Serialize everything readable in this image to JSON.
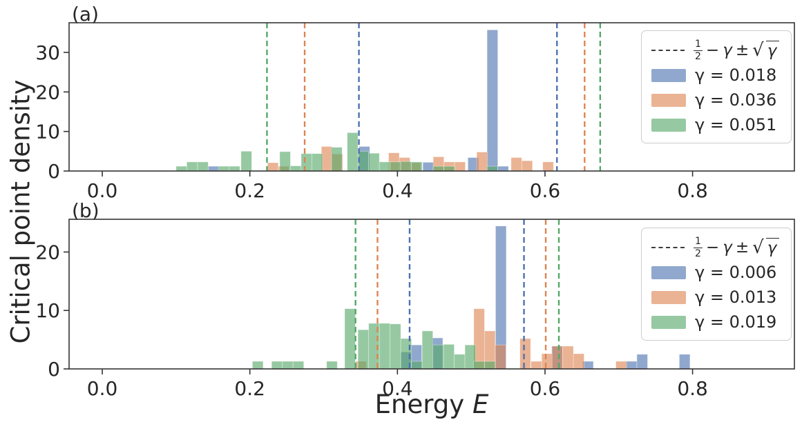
{
  "figure": {
    "ylabel": "Critical point density",
    "xlabel": "Energy E",
    "xlabel_main": "Energy",
    "xlabel_var": "E",
    "background": "#ffffff",
    "text_color": "#262626",
    "spine_color": "#333333"
  },
  "legend_formula": {
    "num": "1",
    "den": "2",
    "minus": "−",
    "gamma": "γ",
    "pm": "±",
    "root": "√",
    "root_arg": "γ"
  },
  "chart_data": [
    {
      "id": "a",
      "tag": "(a)",
      "type": "bar",
      "subtype": "overlaid-histograms",
      "xlim": [
        -0.045,
        0.938
      ],
      "ylim": [
        0,
        37.5
      ],
      "xticks": [
        {
          "v": 0.0,
          "label": "0.0"
        },
        {
          "v": 0.2,
          "label": "0.2"
        },
        {
          "v": 0.4,
          "label": "0.4"
        },
        {
          "v": 0.6,
          "label": "0.6"
        },
        {
          "v": 0.8,
          "label": "0.8"
        }
      ],
      "yticks": [
        {
          "v": 0,
          "label": "0"
        },
        {
          "v": 10,
          "label": "10"
        },
        {
          "v": 20,
          "label": "20"
        },
        {
          "v": 30,
          "label": "30"
        }
      ],
      "bin_width": 0.0145,
      "fill_alpha": 0.62,
      "legend_position": "upper right",
      "series": [
        {
          "label": "γ = 0.018",
          "gamma": 0.018,
          "color": "#4c72b0",
          "bars": [
            [
              0.1435,
              1.2
            ],
            [
              0.348,
              6.2
            ],
            [
              0.4345,
              2.2
            ],
            [
              0.4955,
              3.4
            ],
            [
              0.5215,
              35.7
            ],
            [
              0.536,
              1.2
            ]
          ]
        },
        {
          "label": "γ = 0.036",
          "gamma": 0.036,
          "color": "#dd8452",
          "bars": [
            [
              0.224,
              2.1
            ],
            [
              0.2385,
              1.2
            ],
            [
              0.297,
              6.2
            ],
            [
              0.3115,
              4.3
            ],
            [
              0.388,
              4.6
            ],
            [
              0.4025,
              3.4
            ],
            [
              0.417,
              2.1
            ],
            [
              0.4485,
              3.6
            ],
            [
              0.463,
              2.3
            ],
            [
              0.4775,
              2.3
            ],
            [
              0.5075,
              4.8
            ],
            [
              0.554,
              3.4
            ],
            [
              0.5685,
              2.6
            ],
            [
              0.597,
              2.3
            ]
          ]
        },
        {
          "label": "γ = 0.051",
          "gamma": 0.051,
          "color": "#55a868",
          "bars": [
            [
              0.1,
              1.2
            ],
            [
              0.1145,
              2.3
            ],
            [
              0.129,
              2.3
            ],
            [
              0.1575,
              1.2
            ],
            [
              0.172,
              1.2
            ],
            [
              0.188,
              5.0
            ],
            [
              0.2405,
              4.9
            ],
            [
              0.255,
              1.3
            ],
            [
              0.2695,
              4.4
            ],
            [
              0.284,
              4.4
            ],
            [
              0.3105,
              6.0
            ],
            [
              0.332,
              9.7
            ],
            [
              0.3465,
              5.0
            ],
            [
              0.361,
              4.5
            ],
            [
              0.3755,
              2.3
            ],
            [
              0.39,
              2.3
            ],
            [
              0.4045,
              2.4
            ],
            [
              0.419,
              2.3
            ],
            [
              0.4485,
              1.2
            ],
            [
              0.463,
              1.2
            ],
            [
              0.5215,
              1.2
            ]
          ]
        }
      ],
      "vlines": [
        {
          "gamma": 0.018,
          "color": "#4c72b0",
          "x": [
            0.3478,
            0.6162
          ]
        },
        {
          "gamma": 0.036,
          "color": "#dd8452",
          "x": [
            0.2743,
            0.6537
          ]
        },
        {
          "gamma": 0.051,
          "color": "#55a868",
          "x": [
            0.2232,
            0.6748
          ]
        }
      ]
    },
    {
      "id": "b",
      "tag": "(b)",
      "type": "bar",
      "subtype": "overlaid-histograms",
      "xlim": [
        -0.045,
        0.938
      ],
      "ylim": [
        0,
        25.6
      ],
      "xticks": [
        {
          "v": 0.0,
          "label": "0.0"
        },
        {
          "v": 0.2,
          "label": "0.2"
        },
        {
          "v": 0.4,
          "label": "0.4"
        },
        {
          "v": 0.6,
          "label": "0.6"
        },
        {
          "v": 0.8,
          "label": "0.8"
        }
      ],
      "yticks": [
        {
          "v": 0,
          "label": "0"
        },
        {
          "v": 10,
          "label": "10"
        },
        {
          "v": 20,
          "label": "20"
        }
      ],
      "bin_width": 0.0145,
      "fill_alpha": 0.62,
      "legend_position": "upper right",
      "series": [
        {
          "label": "γ = 0.006",
          "gamma": 0.006,
          "color": "#4c72b0",
          "bars": [
            [
              0.4045,
              2.9
            ],
            [
              0.4185,
              4.1
            ],
            [
              0.447,
              5.3
            ],
            [
              0.533,
              24.45
            ],
            [
              0.609,
              3.9
            ],
            [
              0.651,
              1.3
            ],
            [
              0.71,
              1.3
            ],
            [
              0.7245,
              2.5
            ],
            [
              0.782,
              2.5
            ]
          ]
        },
        {
          "label": "γ = 0.013",
          "gamma": 0.013,
          "color": "#dd8452",
          "bars": [
            [
              0.3435,
              1.3
            ],
            [
              0.5035,
              10.3
            ],
            [
              0.518,
              6.5
            ],
            [
              0.5325,
              4.1
            ],
            [
              0.566,
              5.2
            ],
            [
              0.581,
              1.3
            ],
            [
              0.5955,
              2.6
            ],
            [
              0.6095,
              3.9
            ],
            [
              0.624,
              3.9
            ],
            [
              0.6385,
              2.6
            ],
            [
              0.696,
              1.3
            ]
          ]
        },
        {
          "label": "γ = 0.019",
          "gamma": 0.019,
          "color": "#55a868",
          "bars": [
            [
              0.2035,
              1.3
            ],
            [
              0.2295,
              1.3
            ],
            [
              0.244,
              1.3
            ],
            [
              0.2585,
              1.3
            ],
            [
              0.304,
              1.3
            ],
            [
              0.3285,
              10.3
            ],
            [
              0.3465,
              6.7
            ],
            [
              0.361,
              7.8
            ],
            [
              0.3755,
              7.8
            ],
            [
              0.39,
              7.7
            ],
            [
              0.4045,
              5.2
            ],
            [
              0.419,
              1.3
            ],
            [
              0.4335,
              6.5
            ],
            [
              0.448,
              4.1
            ],
            [
              0.4625,
              4.2
            ],
            [
              0.477,
              2.5
            ],
            [
              0.4915,
              4.1
            ],
            [
              0.5035,
              1.3
            ],
            [
              0.518,
              1.3
            ]
          ]
        }
      ],
      "vlines": [
        {
          "gamma": 0.006,
          "color": "#4c72b0",
          "x": [
            0.4165,
            0.5715
          ]
        },
        {
          "gamma": 0.013,
          "color": "#dd8452",
          "x": [
            0.373,
            0.601
          ]
        },
        {
          "gamma": 0.019,
          "color": "#55a868",
          "x": [
            0.3432,
            0.6188
          ]
        }
      ]
    }
  ]
}
